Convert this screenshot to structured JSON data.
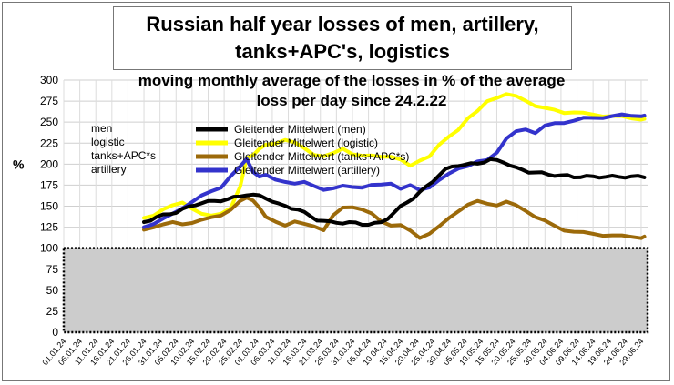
{
  "chart_data": {
    "type": "line",
    "title_lines": [
      "Russian half year losses of men, artillery,",
      "tanks+APC's, logistics"
    ],
    "subtitle_lines": [
      "moving monthly average of the  losses in % of the average",
      "loss per day since 24.2.22"
    ],
    "ylabel": "%",
    "ylim": [
      0,
      300
    ],
    "yticks": [
      0,
      25,
      50,
      75,
      100,
      125,
      150,
      175,
      200,
      225,
      250,
      275,
      300
    ],
    "xticks": [
      "01.01.24",
      "06.01.24",
      "11.01.24",
      "16.01.24",
      "21.01.24",
      "26.01.24",
      "31.01.24",
      "05.02.24",
      "10.02.24",
      "15.02.24",
      "20.02.24",
      "25.02.24",
      "01.03.24",
      "06.03.24",
      "11.03.24",
      "16.03.24",
      "21.03.24",
      "26.03.24",
      "31.03.24",
      "05.04.24",
      "10.04.24",
      "15.04.24",
      "20.04.24",
      "25.04.24",
      "30.04.24",
      "05.05.24",
      "10.05.24",
      "15.05.24",
      "20.05.24",
      "25.05.24",
      "30.05.24",
      "04.06.24",
      "09.06.24",
      "14.06.24",
      "19.06.24",
      "24.06.24",
      "29.06.24"
    ],
    "reference_band": [
      0,
      100
    ],
    "grid": true,
    "legend_left": [
      "men",
      "logistic",
      "tanks+APC*s",
      "artillery"
    ],
    "series": [
      {
        "name": "Gleitender Mittelwert (men)",
        "color": "#000000",
        "x": [
          25,
          27,
          29,
          31,
          33,
          35,
          37,
          39,
          41,
          43,
          45,
          47,
          49,
          51,
          53,
          55,
          57,
          59,
          61,
          63,
          65,
          67,
          69,
          71,
          73,
          75,
          77,
          79,
          81,
          83,
          85,
          87,
          89,
          91,
          93,
          95,
          97,
          99,
          101,
          103,
          105,
          107,
          109,
          111,
          113,
          115,
          117,
          119,
          121,
          123,
          125,
          127,
          129,
          131,
          133,
          135,
          137,
          139,
          141,
          143,
          145,
          147,
          149,
          151,
          153,
          155,
          157,
          159,
          161,
          163,
          165,
          167,
          169,
          171,
          173,
          175,
          177,
          179,
          181
        ],
        "values": [
          131,
          134,
          137,
          139,
          141,
          143,
          146,
          149,
          152,
          154,
          155,
          156,
          157,
          158,
          160,
          162,
          164,
          163,
          162,
          160,
          156,
          152,
          150,
          148,
          146,
          142,
          138,
          134,
          132,
          131,
          131,
          130,
          130,
          130,
          129,
          128,
          129,
          131,
          136,
          142,
          149,
          155,
          160,
          166,
          173,
          180,
          187,
          193,
          197,
          199,
          199,
          200,
          201,
          203,
          205,
          204,
          203,
          199,
          195,
          193,
          191,
          190,
          189,
          188,
          187,
          186,
          186,
          185,
          185,
          185,
          185,
          185,
          185,
          185,
          185,
          185,
          185,
          185,
          185
        ]
      },
      {
        "name": "Gleitender Mittelwert (logistic)",
        "color": "#ffff00",
        "x": [
          25,
          28,
          31,
          34,
          37,
          40,
          43,
          46,
          49,
          52,
          55,
          57,
          59,
          61,
          63,
          66,
          69,
          72,
          75,
          78,
          81,
          84,
          87,
          90,
          93,
          96,
          99,
          102,
          105,
          108,
          111,
          114,
          117,
          120,
          123,
          126,
          129,
          132,
          135,
          138,
          141,
          144,
          147,
          150,
          153,
          156,
          159,
          162,
          165,
          168,
          171,
          174,
          177,
          180,
          181
        ],
        "values": [
          136,
          140,
          146,
          150,
          155,
          148,
          140,
          138,
          142,
          148,
          172,
          207,
          212,
          218,
          222,
          225,
          230,
          225,
          218,
          212,
          210,
          212,
          218,
          213,
          210,
          209,
          209,
          210,
          205,
          197,
          205,
          210,
          222,
          232,
          242,
          255,
          262,
          275,
          280,
          283,
          280,
          276,
          270,
          266,
          264,
          262,
          262,
          260,
          259,
          258,
          257,
          256,
          255,
          254,
          253
        ]
      },
      {
        "name": "Gleitender Mittelwert (tanks+APC*s)",
        "color": "#9c6a0a",
        "x": [
          25,
          28,
          31,
          34,
          37,
          40,
          43,
          46,
          49,
          52,
          55,
          57,
          59,
          61,
          63,
          66,
          69,
          72,
          75,
          78,
          81,
          84,
          87,
          90,
          93,
          96,
          99,
          102,
          105,
          108,
          111,
          114,
          117,
          120,
          123,
          126,
          129,
          132,
          135,
          138,
          141,
          144,
          147,
          150,
          153,
          156,
          159,
          162,
          165,
          168,
          171,
          174,
          177,
          180,
          181
        ],
        "values": [
          122,
          126,
          128,
          130,
          129,
          131,
          133,
          136,
          140,
          146,
          155,
          160,
          158,
          148,
          136,
          132,
          128,
          131,
          128,
          127,
          122,
          138,
          148,
          150,
          146,
          140,
          132,
          128,
          127,
          120,
          113,
          118,
          125,
          135,
          145,
          152,
          155,
          153,
          152,
          155,
          150,
          145,
          138,
          132,
          126,
          122,
          120,
          118,
          117,
          116,
          115,
          114,
          114,
          113,
          113
        ]
      },
      {
        "name": "Gleitender Mittelwert (artillery)",
        "color": "#3333cc",
        "x": [
          25,
          28,
          31,
          34,
          37,
          40,
          43,
          46,
          49,
          52,
          55,
          57,
          59,
          61,
          63,
          66,
          69,
          72,
          75,
          78,
          81,
          84,
          87,
          90,
          93,
          96,
          99,
          102,
          105,
          108,
          111,
          114,
          117,
          120,
          123,
          126,
          129,
          132,
          135,
          138,
          141,
          144,
          147,
          150,
          153,
          156,
          159,
          162,
          165,
          168,
          171,
          174,
          177,
          180,
          181
        ],
        "values": [
          125,
          130,
          135,
          140,
          148,
          156,
          162,
          167,
          173,
          186,
          196,
          206,
          192,
          185,
          186,
          182,
          180,
          176,
          178,
          175,
          170,
          170,
          174,
          174,
          172,
          174,
          176,
          178,
          170,
          174,
          170,
          173,
          180,
          188,
          196,
          198,
          202,
          205,
          215,
          230,
          238,
          242,
          238,
          245,
          248,
          250,
          252,
          254,
          255,
          256,
          257,
          258,
          258,
          258,
          257
        ]
      }
    ]
  }
}
